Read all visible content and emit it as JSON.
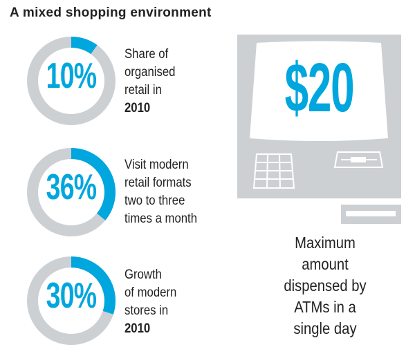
{
  "title": "A mixed shopping environment",
  "colors": {
    "accent": "#00a6de",
    "track": "#cdd0d3"
  },
  "chart_data": [
    {
      "type": "pie",
      "variant": "donut",
      "value": 10,
      "label": "10%",
      "lines": [
        "Share of",
        "organised",
        "retail in"
      ],
      "bold_line": "2010"
    },
    {
      "type": "pie",
      "variant": "donut",
      "value": 36,
      "label": "36%",
      "lines": [
        "Visit modern",
        "retail formats",
        "two to three",
        "times a month"
      ],
      "bold_line": ""
    },
    {
      "type": "pie",
      "variant": "donut",
      "value": 30,
      "label": "30%",
      "lines": [
        "Growth",
        "of modern",
        "stores in"
      ],
      "bold_line": "2010"
    }
  ],
  "atm": {
    "amount": "$20",
    "caption": [
      "Maximum",
      "amount",
      "dispensed by",
      "ATMs in a",
      "single day"
    ]
  }
}
